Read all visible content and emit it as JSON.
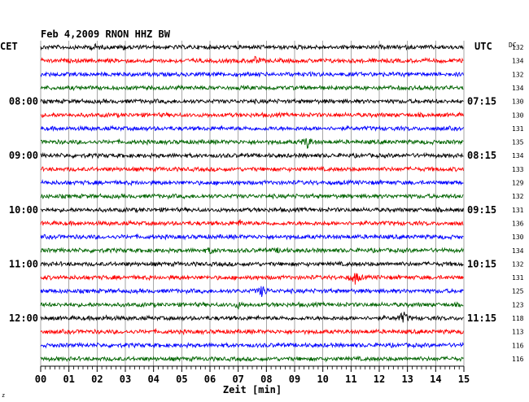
{
  "chart_data": {
    "type": "line",
    "title": "Feb 4,2009   RNON HHZ BW",
    "left_axis_label": "CET",
    "right_axis_label": "UTC",
    "dc_label": "DC",
    "xlabel": "Zeit [min]",
    "x_ticks": [
      "00",
      "01",
      "02",
      "03",
      "04",
      "05",
      "06",
      "07",
      "08",
      "09",
      "10",
      "11",
      "12",
      "13",
      "14",
      "15"
    ],
    "xlim": [
      0,
      15
    ],
    "grid": true,
    "trace_colors": [
      "#000000",
      "#ff0000",
      "#0000ff",
      "#006400"
    ],
    "left_time_labels": [
      {
        "trace": 4,
        "label": "08:00"
      },
      {
        "trace": 8,
        "label": "09:00"
      },
      {
        "trace": 12,
        "label": "10:00"
      },
      {
        "trace": 16,
        "label": "11:00"
      },
      {
        "trace": 20,
        "label": "12:00"
      }
    ],
    "right_time_labels": [
      {
        "trace": 4,
        "label": "07:15"
      },
      {
        "trace": 8,
        "label": "08:15"
      },
      {
        "trace": 12,
        "label": "09:15"
      },
      {
        "trace": 16,
        "label": "10:15"
      },
      {
        "trace": 20,
        "label": "11:15"
      }
    ],
    "dc_values": [
      "132",
      "134",
      "132",
      "134",
      "130",
      "130",
      "131",
      "135",
      "134",
      "133",
      "129",
      "132",
      "131",
      "136",
      "130",
      "134",
      "132",
      "131",
      "125",
      "123",
      "118",
      "113",
      "116",
      "116"
    ],
    "events": [
      {
        "trace": 0,
        "x": 1.9,
        "amp": 0.35
      },
      {
        "trace": 0,
        "x": 2.95,
        "amp": 0.3
      },
      {
        "trace": 1,
        "x": 7.6,
        "amp": 0.55
      },
      {
        "trace": 3,
        "x": 13.5,
        "amp": 0.3
      },
      {
        "trace": 7,
        "x": 9.45,
        "amp": 1.0
      },
      {
        "trace": 13,
        "x": 7.1,
        "amp": 0.4
      },
      {
        "trace": 15,
        "x": 6.05,
        "amp": 0.45
      },
      {
        "trace": 15,
        "x": 8.5,
        "amp": 0.4
      },
      {
        "trace": 17,
        "x": 11.15,
        "amp": 1.0
      },
      {
        "trace": 18,
        "x": 7.85,
        "amp": 0.9
      },
      {
        "trace": 19,
        "x": 7.0,
        "amp": 0.45
      },
      {
        "trace": 20,
        "x": 2.3,
        "amp": 0.3
      },
      {
        "trace": 20,
        "x": 12.85,
        "amp": 1.0
      }
    ]
  },
  "footer_mark": "z"
}
